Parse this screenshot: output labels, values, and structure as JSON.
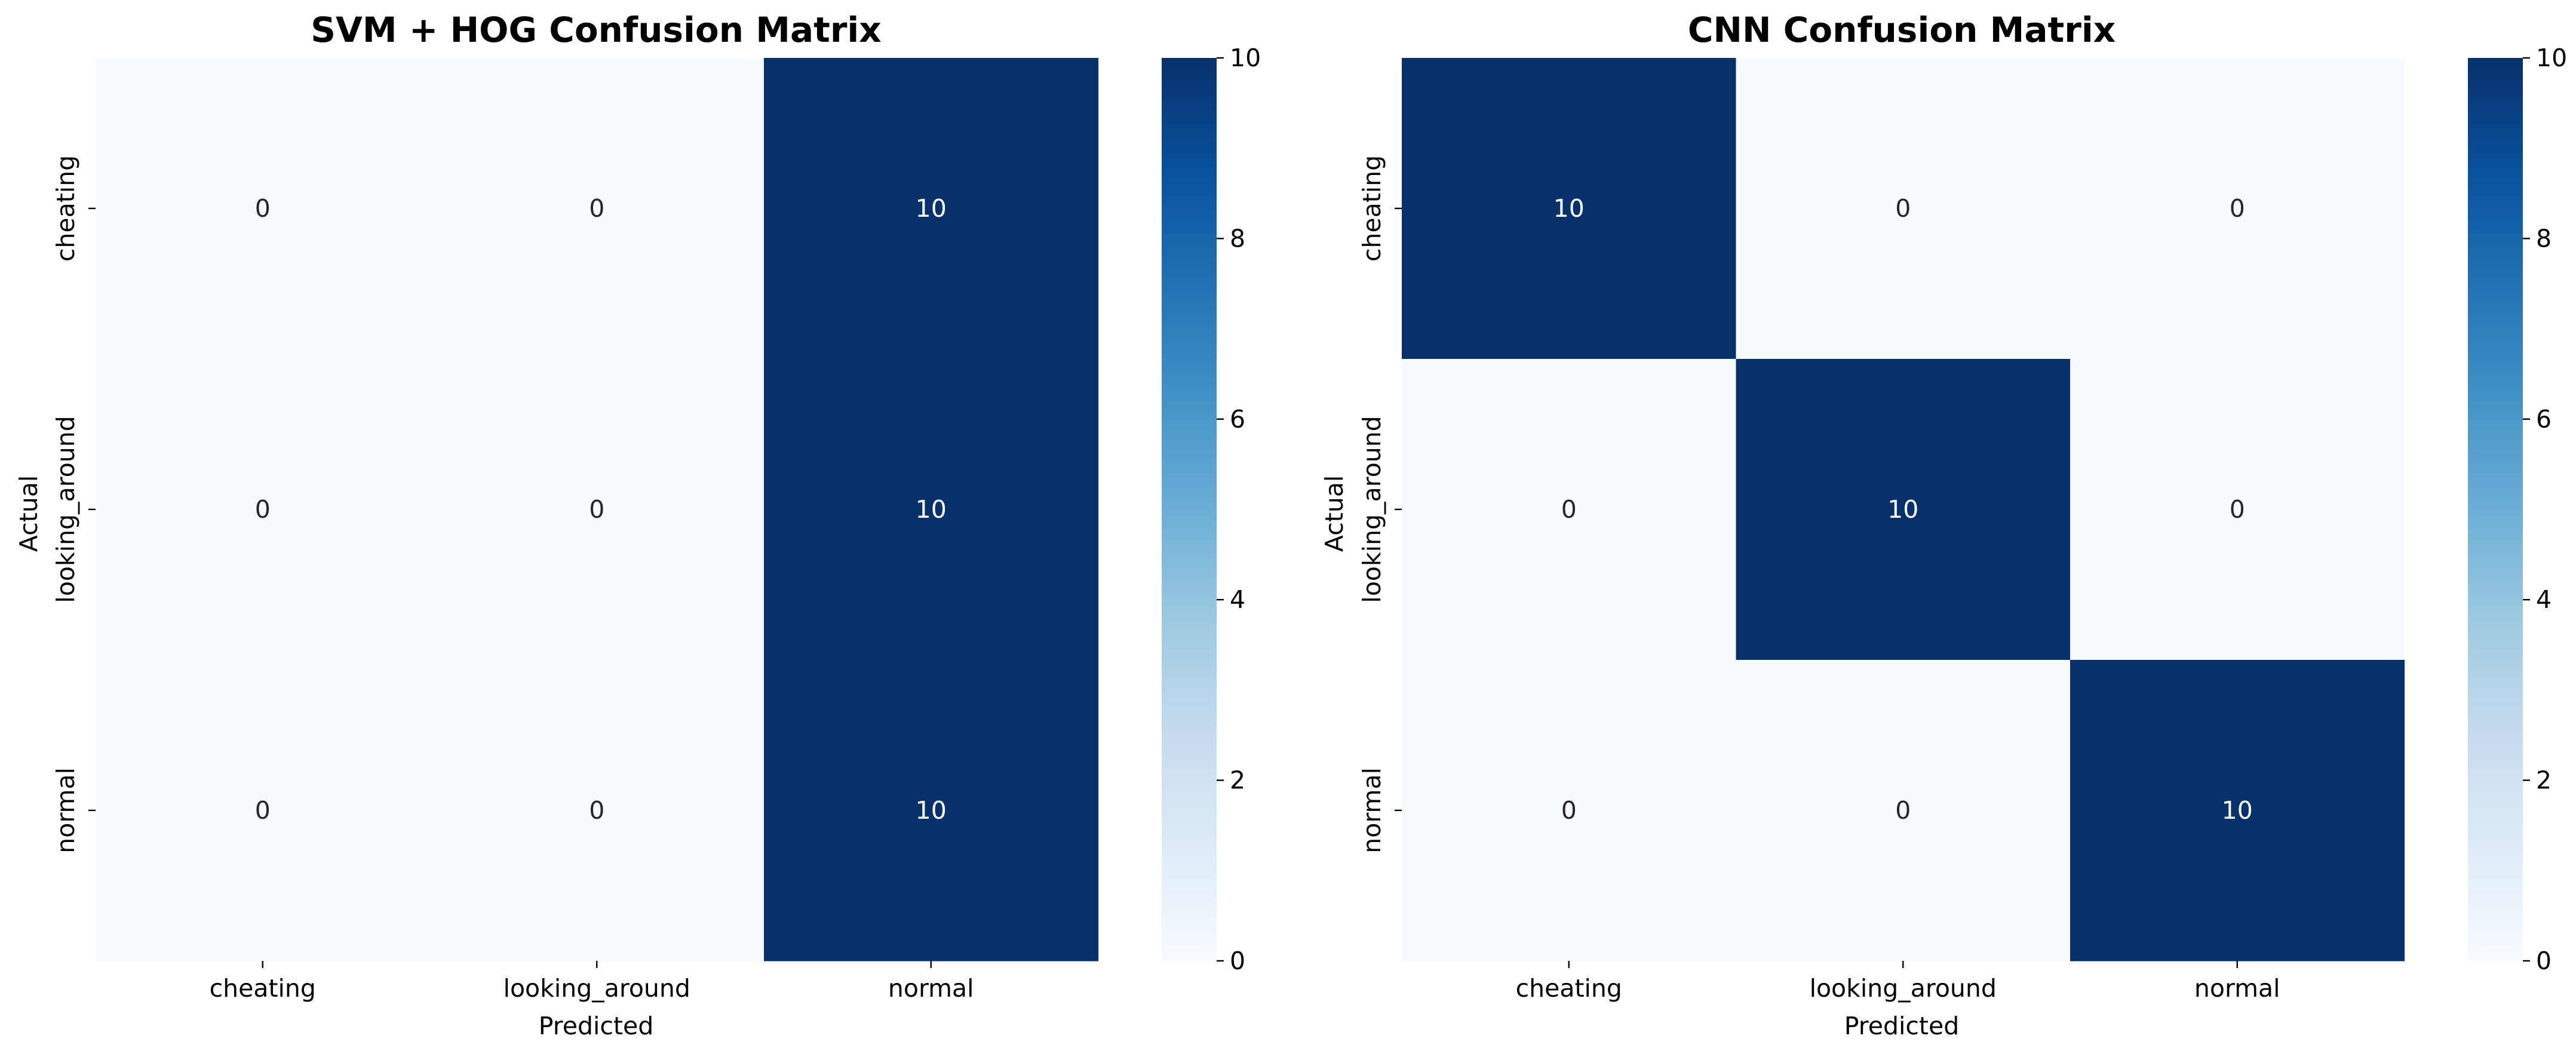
{
  "chart_data": [
    {
      "type": "heatmap",
      "title": "SVM + HOG Confusion Matrix",
      "xlabel": "Predicted",
      "ylabel": "Actual",
      "x_categories": [
        "cheating",
        "looking_around",
        "normal"
      ],
      "y_categories": [
        "cheating",
        "looking_around",
        "normal"
      ],
      "values": [
        [
          0,
          0,
          10
        ],
        [
          0,
          0,
          10
        ],
        [
          0,
          0,
          10
        ]
      ],
      "colorbar": {
        "range": [
          0,
          10
        ],
        "ticks": [
          0,
          2,
          4,
          6,
          8,
          10
        ],
        "colormap": "Blues"
      }
    },
    {
      "type": "heatmap",
      "title": "CNN Confusion Matrix",
      "xlabel": "Predicted",
      "ylabel": "Actual",
      "x_categories": [
        "cheating",
        "looking_around",
        "normal"
      ],
      "y_categories": [
        "cheating",
        "looking_around",
        "normal"
      ],
      "values": [
        [
          10,
          0,
          0
        ],
        [
          0,
          10,
          0
        ],
        [
          0,
          0,
          10
        ]
      ],
      "colorbar": {
        "range": [
          0,
          10
        ],
        "ticks": [
          0,
          2,
          4,
          6,
          8,
          10
        ],
        "colormap": "Blues"
      }
    }
  ],
  "colors": {
    "low": "#f7fbff",
    "high": "#08306b",
    "text_on_light": "#262626",
    "text_on_dark": "#ffffff"
  }
}
